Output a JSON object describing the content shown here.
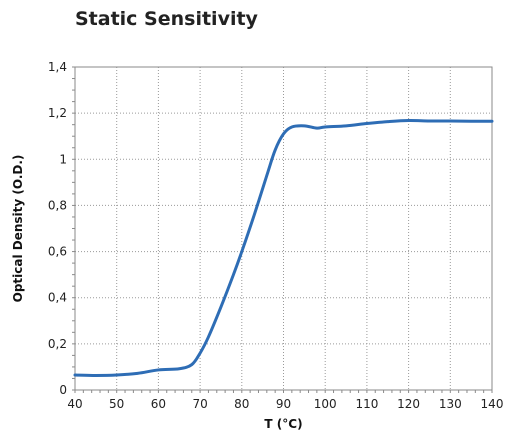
{
  "chart_data": {
    "type": "line",
    "title": "Static Sensitivity",
    "xlabel": "T (°C)",
    "ylabel": "Optical Density (O.D.)",
    "xlim": [
      40,
      140
    ],
    "ylim": [
      0,
      1.4
    ],
    "x_ticks": [
      40,
      50,
      60,
      70,
      80,
      90,
      100,
      110,
      120,
      130,
      140
    ],
    "x_tick_labels": [
      "40",
      "50",
      "60",
      "70",
      "80",
      "90",
      "100",
      "110",
      "120",
      "130",
      "140"
    ],
    "y_ticks": [
      0,
      0.2,
      0.4,
      0.6,
      0.8,
      1,
      1.2,
      1.4
    ],
    "y_tick_labels": [
      "0",
      "0,2",
      "0,4",
      "0,6",
      "0,8",
      "1",
      "1,2",
      "1,4"
    ],
    "grid": true,
    "series": [
      {
        "color": "#2e6db5",
        "x": [
          40,
          45,
          50,
          55,
          60,
          65,
          68,
          70,
          72,
          75,
          78,
          80,
          83,
          86,
          88,
          90,
          92,
          95,
          98,
          100,
          105,
          110,
          115,
          120,
          125,
          130,
          135,
          140
        ],
        "y": [
          0.065,
          0.063,
          0.065,
          0.072,
          0.087,
          0.092,
          0.11,
          0.16,
          0.23,
          0.36,
          0.5,
          0.6,
          0.76,
          0.93,
          1.04,
          1.11,
          1.14,
          1.145,
          1.135,
          1.14,
          1.145,
          1.155,
          1.163,
          1.168,
          1.166,
          1.166,
          1.165,
          1.165
        ]
      }
    ]
  }
}
